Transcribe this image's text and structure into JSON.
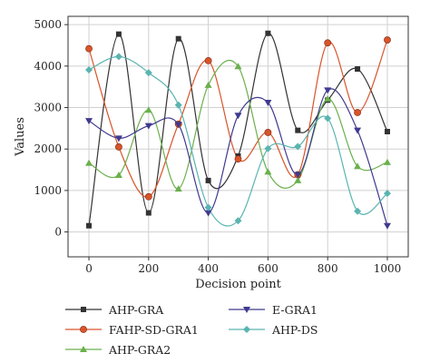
{
  "chart_data": {
    "type": "line",
    "title": "",
    "xlabel": "Decision point",
    "ylabel": "Values",
    "xlim": [
      -70,
      1070
    ],
    "ylim": [
      -600,
      5200
    ],
    "x_ticks": [
      0,
      200,
      400,
      600,
      800,
      1000
    ],
    "y_ticks": [
      0,
      1000,
      2000,
      3000,
      4000,
      5000
    ],
    "grid": true,
    "legend_position": "bottom",
    "smooth": true,
    "x": [
      0,
      100,
      200,
      300,
      400,
      500,
      600,
      700,
      800,
      900,
      1000
    ],
    "series": [
      {
        "name": "AHP-GRA",
        "color": "#333333",
        "marker": "square",
        "values": [
          150,
          4770,
          460,
          4660,
          1240,
          1830,
          4790,
          2450,
          3180,
          3930,
          2420
        ]
      },
      {
        "name": "FAHP-SD-GRA1",
        "color": "#d9542a",
        "marker": "circle",
        "values": [
          4420,
          2050,
          850,
          2600,
          4130,
          1760,
          2400,
          1380,
          4560,
          2880,
          4630
        ]
      },
      {
        "name": "AHP-GRA2",
        "color": "#6ab04c",
        "marker": "triangle-up",
        "values": [
          1660,
          1370,
          2940,
          1040,
          3540,
          3990,
          1450,
          1240,
          3210,
          1580,
          1680
        ]
      },
      {
        "name": "E-GRA1",
        "color": "#3f3a8f",
        "marker": "triangle-down",
        "values": [
          2680,
          2260,
          2560,
          2590,
          460,
          2810,
          3120,
          1380,
          3420,
          2450,
          150
        ]
      },
      {
        "name": "AHP-DS",
        "color": "#5ab4b0",
        "marker": "diamond",
        "values": [
          3910,
          4230,
          3840,
          3060,
          590,
          270,
          2010,
          2060,
          2740,
          500,
          930
        ]
      }
    ]
  }
}
